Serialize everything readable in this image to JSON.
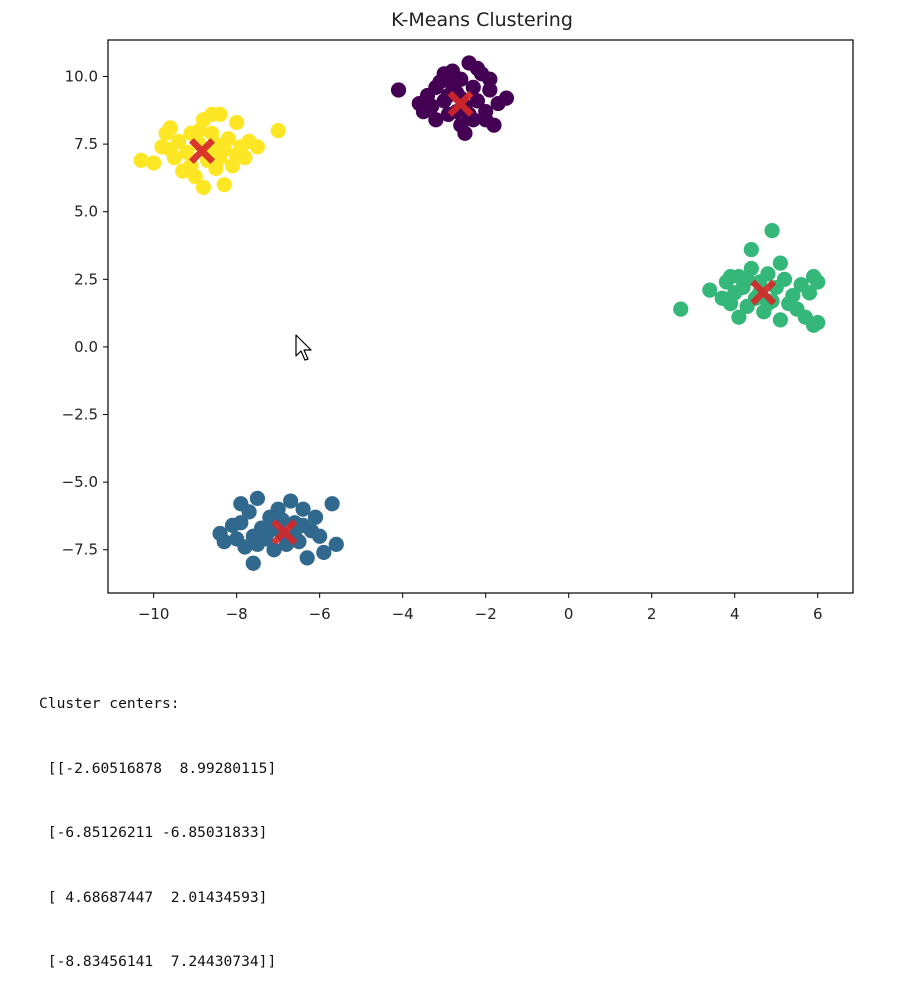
{
  "chart_data": {
    "type": "scatter",
    "title": "K-Means Clustering",
    "xlabel": "",
    "ylabel": "",
    "xlim": [
      -11.1,
      6.85
    ],
    "ylim": [
      -9.1,
      11.35
    ],
    "xticks": [
      -10,
      -8,
      -6,
      -4,
      -2,
      0,
      2,
      4,
      6
    ],
    "xtick_labels": [
      "−10",
      "−8",
      "−6",
      "−4",
      "−2",
      "0",
      "2",
      "4",
      "6"
    ],
    "yticks": [
      10.0,
      7.5,
      5.0,
      2.5,
      0.0,
      -2.5,
      -5.0,
      -7.5
    ],
    "ytick_labels": [
      "10.0",
      "7.5",
      "5.0",
      "2.5",
      "0.0",
      "−2.5",
      "−5.0",
      "−7.5"
    ],
    "grid": false,
    "legend": "none",
    "series": [
      {
        "color": "#440154",
        "points": [
          [
            -4.1,
            9.5
          ],
          [
            -3.6,
            9.0
          ],
          [
            -3.5,
            8.7
          ],
          [
            -3.4,
            9.3
          ],
          [
            -3.2,
            8.4
          ],
          [
            -3.1,
            9.8
          ],
          [
            -3.0,
            9.1
          ],
          [
            -2.9,
            8.6
          ],
          [
            -2.8,
            10.2
          ],
          [
            -2.7,
            9.4
          ],
          [
            -2.6,
            8.2
          ],
          [
            -2.6,
            9.9
          ],
          [
            -2.5,
            8.9
          ],
          [
            -2.4,
            10.5
          ],
          [
            -2.3,
            9.6
          ],
          [
            -2.3,
            8.4
          ],
          [
            -2.2,
            9.1
          ],
          [
            -2.1,
            10.1
          ],
          [
            -2.0,
            8.7
          ],
          [
            -1.9,
            9.5
          ],
          [
            -1.8,
            8.2
          ],
          [
            -1.7,
            9.0
          ],
          [
            -1.5,
            9.2
          ],
          [
            -2.8,
            9.7
          ],
          [
            -3.3,
            8.9
          ],
          [
            -2.5,
            7.9
          ],
          [
            -2.2,
            10.3
          ],
          [
            -3.0,
            10.1
          ],
          [
            -2.6,
            9.2
          ],
          [
            -2.9,
            9.3
          ],
          [
            -2.4,
            8.6
          ],
          [
            -1.9,
            9.9
          ],
          [
            -3.2,
            9.6
          ],
          [
            -2.0,
            8.4
          ],
          [
            -2.7,
            8.7
          ]
        ]
      },
      {
        "color": "#31688e",
        "points": [
          [
            -8.4,
            -6.9
          ],
          [
            -8.3,
            -7.2
          ],
          [
            -8.1,
            -6.6
          ],
          [
            -7.9,
            -5.8
          ],
          [
            -7.8,
            -7.4
          ],
          [
            -7.7,
            -6.1
          ],
          [
            -7.6,
            -8.0
          ],
          [
            -7.5,
            -5.6
          ],
          [
            -7.4,
            -6.7
          ],
          [
            -7.3,
            -7.1
          ],
          [
            -7.2,
            -6.3
          ],
          [
            -7.1,
            -7.5
          ],
          [
            -7.0,
            -6.0
          ],
          [
            -6.9,
            -6.9
          ],
          [
            -6.8,
            -7.3
          ],
          [
            -6.7,
            -5.7
          ],
          [
            -6.6,
            -6.5
          ],
          [
            -6.5,
            -7.2
          ],
          [
            -6.4,
            -6.0
          ],
          [
            -6.3,
            -7.8
          ],
          [
            -6.2,
            -6.8
          ],
          [
            -6.1,
            -6.3
          ],
          [
            -6.0,
            -7.0
          ],
          [
            -5.9,
            -7.6
          ],
          [
            -5.7,
            -5.8
          ],
          [
            -5.6,
            -7.3
          ],
          [
            -7.9,
            -6.5
          ],
          [
            -7.6,
            -7.0
          ],
          [
            -6.6,
            -7.0
          ],
          [
            -7.2,
            -6.8
          ],
          [
            -6.9,
            -6.4
          ],
          [
            -6.4,
            -6.6
          ],
          [
            -7.5,
            -7.3
          ],
          [
            -8.0,
            -7.1
          ]
        ]
      },
      {
        "color": "#35b779",
        "points": [
          [
            2.7,
            1.4
          ],
          [
            3.4,
            2.1
          ],
          [
            3.7,
            1.8
          ],
          [
            3.8,
            2.4
          ],
          [
            3.9,
            1.6
          ],
          [
            4.0,
            2.0
          ],
          [
            4.1,
            2.6
          ],
          [
            4.1,
            1.1
          ],
          [
            4.2,
            2.2
          ],
          [
            4.3,
            1.5
          ],
          [
            4.4,
            2.9
          ],
          [
            4.4,
            3.6
          ],
          [
            4.5,
            1.8
          ],
          [
            4.6,
            2.4
          ],
          [
            4.7,
            1.3
          ],
          [
            4.8,
            2.7
          ],
          [
            4.9,
            4.3
          ],
          [
            4.9,
            1.7
          ],
          [
            5.0,
            2.2
          ],
          [
            5.1,
            1.0
          ],
          [
            5.1,
            3.1
          ],
          [
            5.2,
            2.5
          ],
          [
            5.4,
            1.9
          ],
          [
            5.5,
            1.4
          ],
          [
            5.6,
            2.3
          ],
          [
            5.8,
            2.0
          ],
          [
            5.9,
            0.8
          ],
          [
            5.9,
            2.6
          ],
          [
            6.0,
            0.9
          ],
          [
            6.0,
            2.4
          ],
          [
            5.7,
            1.1
          ],
          [
            4.6,
            2.0
          ],
          [
            4.3,
            2.5
          ],
          [
            5.3,
            1.6
          ],
          [
            4.8,
            1.6
          ],
          [
            3.9,
            2.6
          ]
        ]
      },
      {
        "color": "#fde725",
        "points": [
          [
            -10.3,
            6.9
          ],
          [
            -10.0,
            6.8
          ],
          [
            -9.8,
            7.4
          ],
          [
            -9.7,
            7.9
          ],
          [
            -9.6,
            8.1
          ],
          [
            -9.5,
            7.0
          ],
          [
            -9.4,
            7.6
          ],
          [
            -9.3,
            6.5
          ],
          [
            -9.2,
            7.2
          ],
          [
            -9.1,
            7.9
          ],
          [
            -9.0,
            6.3
          ],
          [
            -8.9,
            7.5
          ],
          [
            -8.8,
            5.9
          ],
          [
            -8.8,
            8.4
          ],
          [
            -8.7,
            6.9
          ],
          [
            -8.6,
            7.9
          ],
          [
            -8.5,
            6.6
          ],
          [
            -8.4,
            8.6
          ],
          [
            -8.3,
            7.3
          ],
          [
            -8.3,
            6.0
          ],
          [
            -8.2,
            7.7
          ],
          [
            -8.1,
            6.7
          ],
          [
            -8.0,
            8.3
          ],
          [
            -7.9,
            7.4
          ],
          [
            -7.8,
            7.0
          ],
          [
            -7.7,
            7.6
          ],
          [
            -7.5,
            7.4
          ],
          [
            -7.0,
            8.0
          ],
          [
            -8.6,
            8.6
          ],
          [
            -9.1,
            6.7
          ],
          [
            -8.4,
            7.0
          ],
          [
            -8.9,
            8.0
          ],
          [
            -8.0,
            7.1
          ],
          [
            -9.6,
            7.3
          ],
          [
            -8.5,
            7.5
          ],
          [
            -8.7,
            7.2
          ]
        ]
      }
    ],
    "centers": {
      "color": "#d62728",
      "marker": "X",
      "points": [
        [
          -2.60516878,
          8.99280115
        ],
        [
          -6.85126211,
          -6.85031833
        ],
        [
          4.68687447,
          2.01434593
        ],
        [
          -8.83456141,
          7.24430734
        ]
      ]
    }
  },
  "output": {
    "lines": [
      "Cluster centers:",
      " [[-2.60516878  8.99280115]",
      " [-6.85126211 -6.85031833]",
      " [ 4.68687447  2.01434593]",
      " [-8.83456141  7.24430734]]"
    ]
  }
}
